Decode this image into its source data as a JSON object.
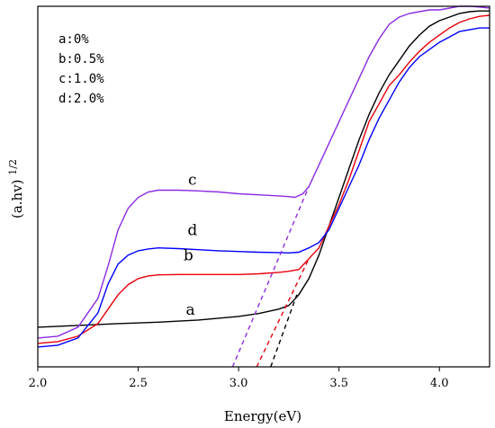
{
  "chart_data": {
    "type": "line",
    "title": "",
    "xlabel": "Energy(eV)",
    "ylabel_main": "(a.hv)",
    "ylabel_sup": "1/2",
    "xlim": [
      2.0,
      4.25
    ],
    "ylim": [
      0,
      1
    ],
    "x_ticks": [
      "2.0",
      "2.5",
      "3.0",
      "3.5",
      "4.0"
    ],
    "x_tick_values": [
      2.0,
      2.5,
      3.0,
      3.5,
      4.0
    ],
    "show_y_ticks": false,
    "grid": false,
    "legend_position": "top-left",
    "legend": [
      "a:0%",
      "b:0.5%",
      "c:1.0%",
      "d:2.0%"
    ],
    "series": [
      {
        "label": "a",
        "color": "#000000",
        "label_pos": [
          2.76,
          0.145
        ],
        "points": [
          [
            2.0,
            0.11
          ],
          [
            2.2,
            0.115
          ],
          [
            2.4,
            0.12
          ],
          [
            2.6,
            0.124
          ],
          [
            2.8,
            0.13
          ],
          [
            2.9,
            0.135
          ],
          [
            3.0,
            0.14
          ],
          [
            3.1,
            0.148
          ],
          [
            3.2,
            0.16
          ],
          [
            3.25,
            0.17
          ],
          [
            3.3,
            0.2
          ],
          [
            3.35,
            0.245
          ],
          [
            3.4,
            0.31
          ],
          [
            3.45,
            0.39
          ],
          [
            3.5,
            0.47
          ],
          [
            3.55,
            0.55
          ],
          [
            3.6,
            0.63
          ],
          [
            3.65,
            0.7
          ],
          [
            3.7,
            0.76
          ],
          [
            3.75,
            0.81
          ],
          [
            3.8,
            0.85
          ],
          [
            3.85,
            0.89
          ],
          [
            3.9,
            0.92
          ],
          [
            3.95,
            0.945
          ],
          [
            4.0,
            0.96
          ],
          [
            4.05,
            0.97
          ],
          [
            4.1,
            0.98
          ],
          [
            4.15,
            0.985
          ],
          [
            4.2,
            0.987
          ],
          [
            4.25,
            0.987
          ]
        ],
        "tangent": [
          [
            3.16,
            0.0
          ],
          [
            3.29,
            0.2
          ]
        ]
      },
      {
        "label": "b",
        "color": "#e8000b",
        "label_pos": [
          2.75,
          0.295
        ],
        "points": [
          [
            2.0,
            0.065
          ],
          [
            2.1,
            0.07
          ],
          [
            2.2,
            0.085
          ],
          [
            2.3,
            0.12
          ],
          [
            2.35,
            0.16
          ],
          [
            2.4,
            0.2
          ],
          [
            2.45,
            0.228
          ],
          [
            2.5,
            0.245
          ],
          [
            2.55,
            0.252
          ],
          [
            2.6,
            0.255
          ],
          [
            2.7,
            0.256
          ],
          [
            2.8,
            0.256
          ],
          [
            2.9,
            0.256
          ],
          [
            3.0,
            0.256
          ],
          [
            3.1,
            0.258
          ],
          [
            3.2,
            0.262
          ],
          [
            3.25,
            0.265
          ],
          [
            3.3,
            0.27
          ],
          [
            3.35,
            0.3
          ],
          [
            3.4,
            0.33
          ],
          [
            3.45,
            0.39
          ],
          [
            3.5,
            0.45
          ],
          [
            3.55,
            0.52
          ],
          [
            3.6,
            0.6
          ],
          [
            3.65,
            0.68
          ],
          [
            3.7,
            0.73
          ],
          [
            3.75,
            0.78
          ],
          [
            3.8,
            0.81
          ],
          [
            3.85,
            0.845
          ],
          [
            3.9,
            0.875
          ],
          [
            3.95,
            0.9
          ],
          [
            4.0,
            0.92
          ],
          [
            4.05,
            0.94
          ],
          [
            4.1,
            0.955
          ],
          [
            4.15,
            0.965
          ],
          [
            4.2,
            0.972
          ],
          [
            4.25,
            0.975
          ]
        ],
        "tangent": [
          [
            3.09,
            0.0
          ],
          [
            3.35,
            0.3
          ]
        ]
      },
      {
        "label": "c",
        "color": "#8b2be2",
        "label_pos": [
          2.77,
          0.505
        ],
        "points": [
          [
            2.0,
            0.08
          ],
          [
            2.1,
            0.085
          ],
          [
            2.2,
            0.11
          ],
          [
            2.3,
            0.19
          ],
          [
            2.35,
            0.28
          ],
          [
            2.4,
            0.38
          ],
          [
            2.45,
            0.44
          ],
          [
            2.5,
            0.47
          ],
          [
            2.55,
            0.485
          ],
          [
            2.6,
            0.49
          ],
          [
            2.7,
            0.49
          ],
          [
            2.8,
            0.488
          ],
          [
            2.9,
            0.485
          ],
          [
            3.0,
            0.48
          ],
          [
            3.1,
            0.477
          ],
          [
            3.2,
            0.474
          ],
          [
            3.25,
            0.472
          ],
          [
            3.28,
            0.47
          ],
          [
            3.32,
            0.48
          ],
          [
            3.35,
            0.5
          ],
          [
            3.4,
            0.56
          ],
          [
            3.45,
            0.62
          ],
          [
            3.5,
            0.68
          ],
          [
            3.55,
            0.74
          ],
          [
            3.6,
            0.8
          ],
          [
            3.65,
            0.86
          ],
          [
            3.7,
            0.91
          ],
          [
            3.75,
            0.95
          ],
          [
            3.8,
            0.97
          ],
          [
            3.85,
            0.98
          ],
          [
            3.9,
            0.985
          ],
          [
            3.95,
            0.99
          ],
          [
            4.0,
            0.99
          ],
          [
            4.05,
            0.995
          ],
          [
            4.1,
            1.0
          ],
          [
            4.15,
            1.0
          ],
          [
            4.2,
            0.998
          ],
          [
            4.25,
            0.995
          ]
        ],
        "tangent": [
          [
            2.97,
            0.0
          ],
          [
            3.35,
            0.5
          ]
        ]
      },
      {
        "label": "d",
        "color": "#0000ff",
        "label_pos": [
          2.77,
          0.365
        ],
        "points": [
          [
            2.0,
            0.055
          ],
          [
            2.1,
            0.06
          ],
          [
            2.2,
            0.08
          ],
          [
            2.3,
            0.15
          ],
          [
            2.35,
            0.23
          ],
          [
            2.4,
            0.285
          ],
          [
            2.45,
            0.31
          ],
          [
            2.5,
            0.322
          ],
          [
            2.55,
            0.327
          ],
          [
            2.6,
            0.33
          ],
          [
            2.7,
            0.328
          ],
          [
            2.8,
            0.325
          ],
          [
            2.9,
            0.322
          ],
          [
            3.0,
            0.32
          ],
          [
            3.1,
            0.318
          ],
          [
            3.2,
            0.317
          ],
          [
            3.25,
            0.316
          ],
          [
            3.3,
            0.318
          ],
          [
            3.35,
            0.33
          ],
          [
            3.4,
            0.345
          ],
          [
            3.45,
            0.38
          ],
          [
            3.5,
            0.44
          ],
          [
            3.55,
            0.5
          ],
          [
            3.6,
            0.56
          ],
          [
            3.65,
            0.63
          ],
          [
            3.7,
            0.69
          ],
          [
            3.75,
            0.74
          ],
          [
            3.8,
            0.79
          ],
          [
            3.85,
            0.83
          ],
          [
            3.9,
            0.86
          ],
          [
            3.95,
            0.88
          ],
          [
            4.0,
            0.9
          ],
          [
            4.05,
            0.915
          ],
          [
            4.1,
            0.93
          ],
          [
            4.15,
            0.935
          ],
          [
            4.2,
            0.94
          ],
          [
            4.25,
            0.94
          ]
        ]
      }
    ]
  }
}
